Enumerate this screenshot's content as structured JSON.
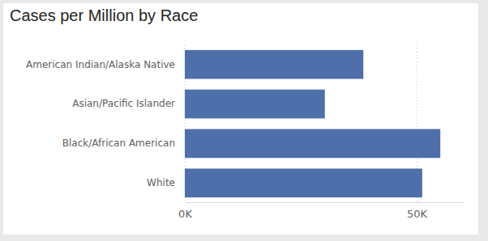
{
  "chart_data": {
    "type": "bar",
    "title": "Cases per Million by Race",
    "orientation": "horizontal",
    "categories": [
      "American Indian/Alaska Native",
      "Asian/Pacific Islander",
      "Black/African American",
      "White"
    ],
    "values": [
      38500,
      30200,
      55100,
      51200
    ],
    "color": "#4e6fa9",
    "xlim": [
      0,
      60000
    ],
    "xticks": [
      {
        "value": 0,
        "label": "0K"
      },
      {
        "value": 50000,
        "label": "50K"
      }
    ],
    "grid": true
  }
}
